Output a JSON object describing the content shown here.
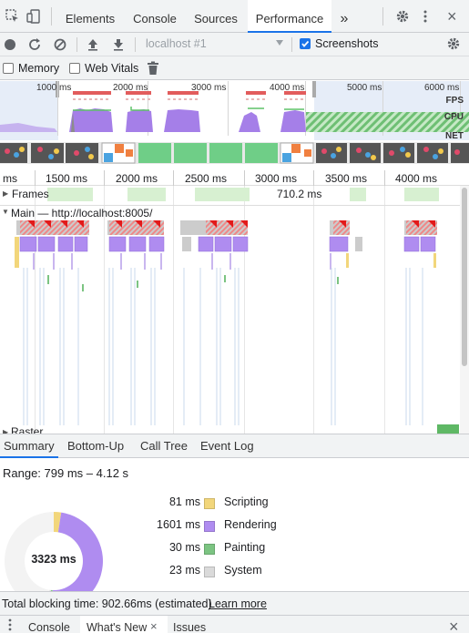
{
  "topbar": {
    "tabs": [
      "Elements",
      "Console",
      "Sources",
      "Performance"
    ],
    "active_tab": "Performance",
    "more_label": "»",
    "settings_icon": "gear-icon",
    "close_label": "×"
  },
  "toolbar": {
    "target_select": "localhost #1",
    "screenshots_label": "Screenshots",
    "screenshots_checked": true,
    "memory_label": "Memory",
    "web_vitals_label": "Web Vitals"
  },
  "overview": {
    "time_labels": [
      "1000 ms",
      "2000 ms",
      "3000 ms",
      "4000 ms",
      "5000 ms",
      "6000 ms"
    ],
    "fps_label": "FPS",
    "cpu_label": "CPU",
    "net_label": "NET"
  },
  "ruler": {
    "labels": [
      "ms",
      "1500 ms",
      "2000 ms",
      "2500 ms",
      "3000 ms",
      "3500 ms",
      "4000 ms"
    ]
  },
  "tracks": {
    "frames_label": "Frames",
    "frame_time": "710.2 ms",
    "main_label": "Main — http://localhost:8005/",
    "raster_label": "Raster"
  },
  "bottom_tabs": [
    "Summary",
    "Bottom-Up",
    "Call Tree",
    "Event Log"
  ],
  "summary": {
    "range": "Range: 799 ms – 4.12 s",
    "total": "3323 ms",
    "rows": [
      {
        "value": "81 ms",
        "name": "Scripting",
        "color": "#f2d67b"
      },
      {
        "value": "1601 ms",
        "name": "Rendering",
        "color": "#af8cf0"
      },
      {
        "value": "30 ms",
        "name": "Painting",
        "color": "#7cc482"
      },
      {
        "value": "23 ms",
        "name": "System",
        "color": "#dadada"
      }
    ],
    "pie": {
      "scripting": 81,
      "rendering": 1601,
      "painting": 30,
      "system": 23,
      "idle": 1588
    }
  },
  "status": {
    "blocking_text": "Total blocking time: 902.66ms (estimated)",
    "learn_more": "Learn more"
  },
  "drawer": {
    "tabs": [
      "Console",
      "What's New",
      "Issues"
    ],
    "close_label": "×",
    "tab_close": "×"
  }
}
